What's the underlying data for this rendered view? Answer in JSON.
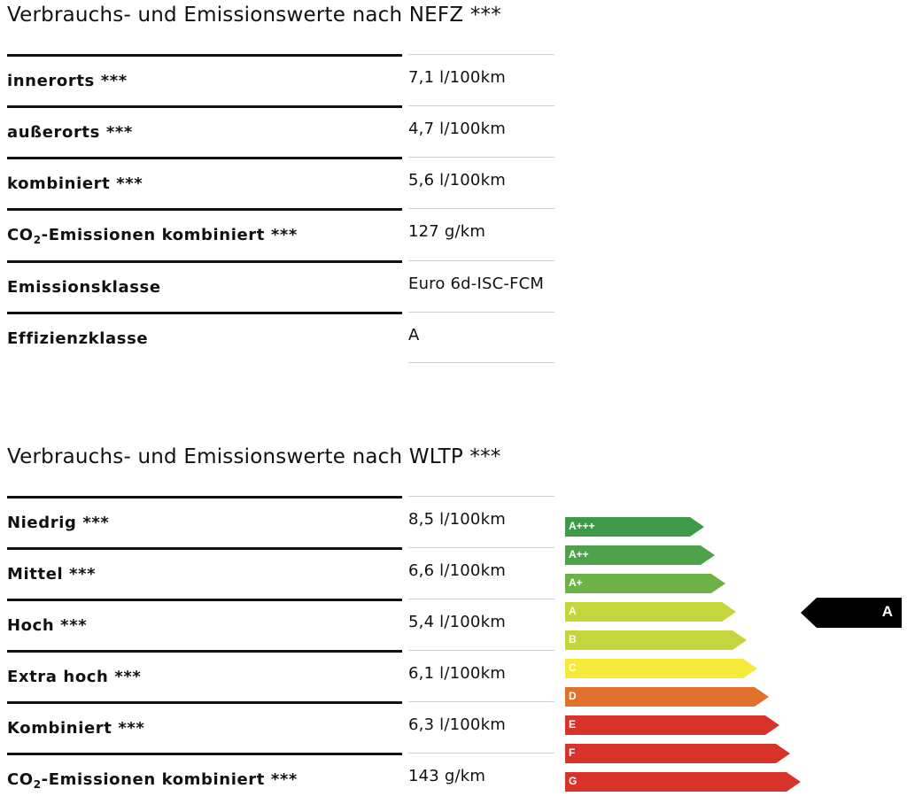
{
  "nefz": {
    "title": "Verbrauchs- und Emissionswerte nach NEFZ ***",
    "rows": [
      {
        "label": "innerorts ***",
        "value": "7,1 l/100km"
      },
      {
        "label": "außerorts ***",
        "value": "4,7 l/100km"
      },
      {
        "label": "kombiniert ***",
        "value": "5,6 l/100km"
      },
      {
        "label_pre": "CO",
        "label_sub": "2",
        "label_post": "-Emissionen kombiniert ***",
        "value": "127 g/km"
      },
      {
        "label": "Emissionsklasse",
        "value": "Euro 6d-ISC-FCM"
      },
      {
        "label": "Effizienzklasse",
        "value": "A"
      }
    ]
  },
  "wltp": {
    "title": "Verbrauchs- und Emissionswerte nach WLTP ***",
    "rows": [
      {
        "label": "Niedrig ***",
        "value": "8,5 l/100km"
      },
      {
        "label": "Mittel ***",
        "value": "6,6 l/100km"
      },
      {
        "label": "Hoch ***",
        "value": "5,4 l/100km"
      },
      {
        "label": "Extra hoch ***",
        "value": "6,1 l/100km"
      },
      {
        "label": "Kombiniert ***",
        "value": "6,3 l/100km"
      },
      {
        "label_pre": "CO",
        "label_sub": "2",
        "label_post": "-Emissionen kombiniert ***",
        "value": "143 g/km"
      }
    ]
  },
  "efficiency_scale": {
    "classes": [
      {
        "label": "A+++",
        "color": "#3e9a48"
      },
      {
        "label": "A++",
        "color": "#4ea24a"
      },
      {
        "label": "A+",
        "color": "#6db247"
      },
      {
        "label": "A",
        "color": "#c6d43d"
      },
      {
        "label": "B",
        "color": "#c6d43d"
      },
      {
        "label": "C",
        "color": "#f6eb3a"
      },
      {
        "label": "D",
        "color": "#e2712d"
      },
      {
        "label": "E",
        "color": "#d8332b"
      },
      {
        "label": "F",
        "color": "#d8332b"
      },
      {
        "label": "G",
        "color": "#d8332b"
      }
    ],
    "selected": "A"
  }
}
